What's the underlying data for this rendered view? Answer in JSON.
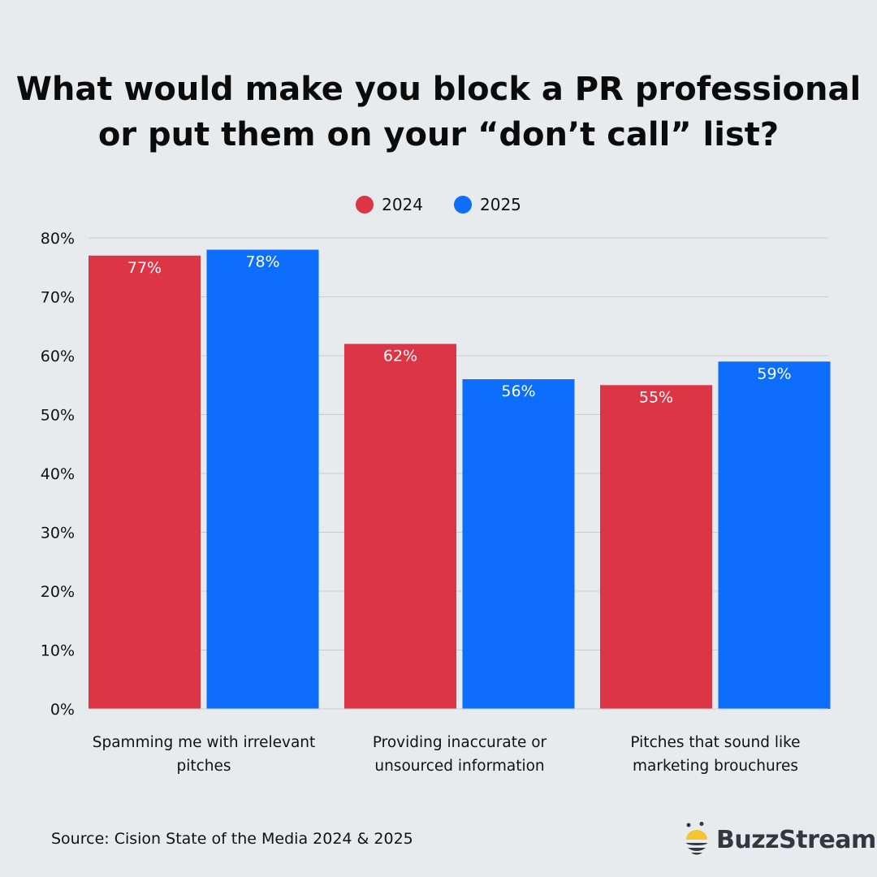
{
  "title_line1": "What would make you block a PR professional",
  "title_line2": "or put them on your “don’t call” list?",
  "source": "Source: Cision State of the Media 2024 & 2025",
  "logo": {
    "text": "BuzzStream",
    "accent": "#f5c431"
  },
  "chart_data": {
    "type": "bar",
    "title": "What would make you block a PR professional or put them on your “don’t call” list?",
    "categories": [
      [
        "Spamming me with irrelevant",
        "pitches"
      ],
      [
        "Providing inaccurate or",
        "unsourced information"
      ],
      [
        "Pitches that sound like",
        "marketing brouchures"
      ]
    ],
    "series": [
      {
        "name": "2024",
        "color": "#dc3545",
        "values": [
          77,
          62,
          55
        ]
      },
      {
        "name": "2025",
        "color": "#0d6efd",
        "values": [
          78,
          56,
          59
        ]
      }
    ],
    "ylim": [
      0,
      80
    ],
    "yticks": [
      0,
      10,
      20,
      30,
      40,
      50,
      60,
      70,
      80
    ],
    "ytick_format": "%",
    "grid": true,
    "legend": "top-center",
    "data_labels": true
  }
}
